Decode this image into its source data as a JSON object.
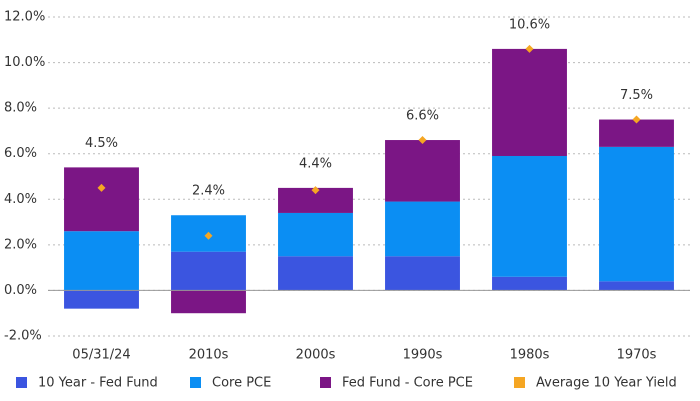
{
  "chart_data": {
    "type": "bar",
    "stacked": true,
    "grid": true,
    "legend": "bottom",
    "categories": [
      "05/31/24",
      "2010s",
      "2000s",
      "1990s",
      "1980s",
      "1970s"
    ],
    "series": [
      {
        "name": "10 Year - Fed Fund",
        "color": "#3b55e0",
        "values": [
          -0.8,
          1.7,
          1.5,
          1.5,
          0.6,
          0.4
        ]
      },
      {
        "name": "Core PCE",
        "color": "#0b8ef3",
        "values": [
          2.6,
          1.6,
          1.9,
          2.4,
          5.3,
          5.9
        ]
      },
      {
        "name": "Fed Fund - Core PCE",
        "color": "#7b1685",
        "values": [
          2.8,
          -1.0,
          1.1,
          2.7,
          4.7,
          1.2
        ]
      },
      {
        "name": "Average 10 Year Yield",
        "color": "#f5a623",
        "type": "scatter",
        "values": [
          4.5,
          2.4,
          4.4,
          6.6,
          10.6,
          7.5
        ],
        "value_labels": [
          "4.5%",
          "2.4%",
          "4.4%",
          "6.6%",
          "10.6%",
          "7.5%"
        ]
      }
    ],
    "ylim": [
      -2,
      12
    ],
    "yticks": [
      {
        "value": -2,
        "label": "-2.0%"
      },
      {
        "value": 0,
        "label": "0.0%"
      },
      {
        "value": 2,
        "label": "2.0%"
      },
      {
        "value": 4,
        "label": "4.0%"
      },
      {
        "value": 6,
        "label": "6.0%"
      },
      {
        "value": 8,
        "label": "8.0%"
      },
      {
        "value": 10,
        "label": "10.0%"
      },
      {
        "value": 12,
        "label": "12.0%"
      }
    ]
  }
}
